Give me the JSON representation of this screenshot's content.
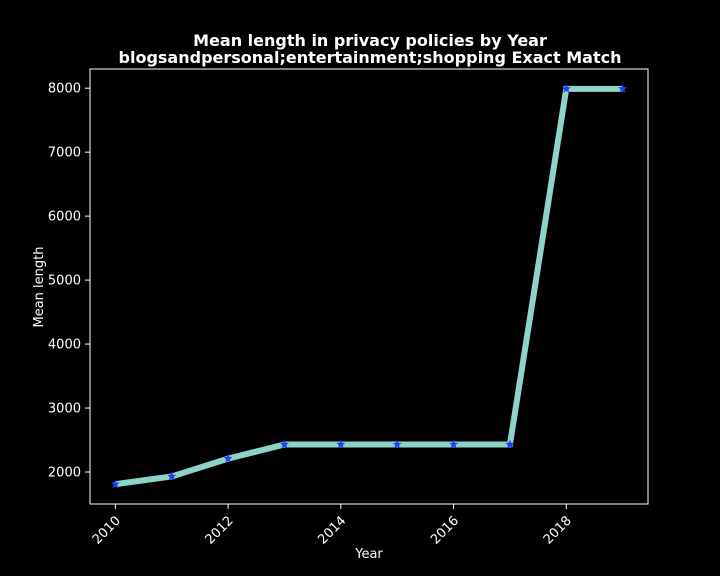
{
  "chart_data": {
    "type": "line",
    "title_line1": "Mean length in privacy policies by Year",
    "title_line2": "blogsandpersonal;entertainment;shopping Exact Match",
    "xlabel": "Year",
    "ylabel": "Mean length",
    "xlim": [
      2009.55,
      2019.45
    ],
    "ylim": [
      1500,
      8300
    ],
    "xticks": [
      2010,
      2012,
      2014,
      2016,
      2018
    ],
    "yticks": [
      2000,
      3000,
      4000,
      5000,
      6000,
      7000,
      8000
    ],
    "grid": false,
    "series": [
      {
        "x": [
          2010,
          2011,
          2012,
          2013,
          2014,
          2015,
          2016,
          2017,
          2018,
          2019
        ],
        "values": [
          1810,
          1930,
          2210,
          2430,
          2430,
          2430,
          2430,
          2430,
          7990,
          7990
        ]
      }
    ],
    "colors": {
      "background": "#000000",
      "axes": "#ffffff",
      "line": "#8dd3c7",
      "marker": "#1f3bff"
    }
  }
}
